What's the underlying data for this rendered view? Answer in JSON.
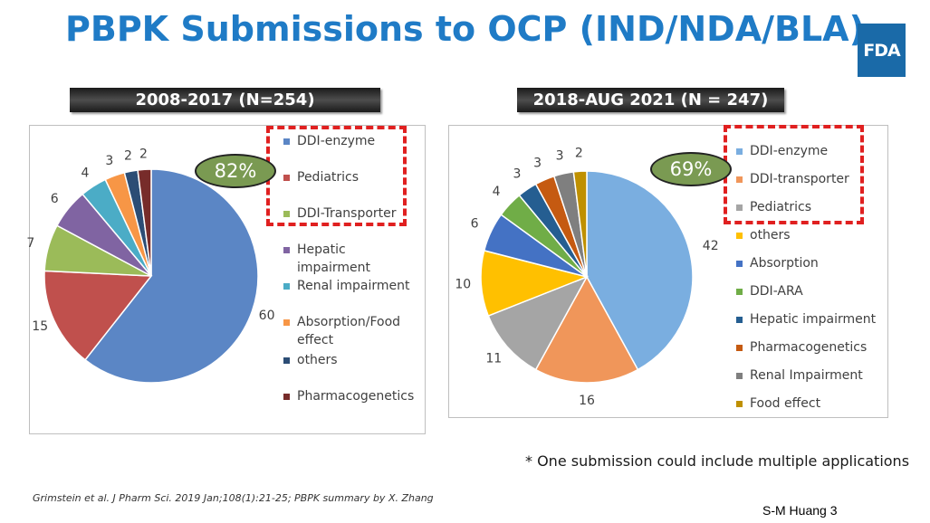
{
  "title": "PBPK Submissions to OCP (IND/NDA/BLA)",
  "logo_text": "FDA",
  "note": "* One submission could include multiple applications",
  "citation": "Grimstein et al. J Pharm Sci. 2019 Jan;108(1):21-25; PBPK summary by X. Zhang",
  "slide_number": "S-M Huang 3",
  "chart_data": [
    {
      "type": "pie",
      "title": "2008-2017 (N=254)",
      "highlight_text": "82%",
      "categories": [
        "DDI-enzyme",
        "Pediatrics",
        "DDI-Transporter",
        "Hepatic impairment",
        "Renal impairment",
        "Absorption/Food effect",
        "others",
        "Pharmacogenetics"
      ],
      "values": [
        60,
        15,
        7,
        6,
        4,
        3,
        2,
        2
      ],
      "value_labels": [
        "60",
        "15",
        "7",
        "6",
        "4",
        "3",
        "2",
        "2"
      ],
      "colors": [
        "#5b86c5",
        "#c0504d",
        "#9bbb59",
        "#8064a2",
        "#4bacc6",
        "#f79646",
        "#2c4d75",
        "#772c2a"
      ],
      "legend_placement": "right"
    },
    {
      "type": "pie",
      "title": "2018-AUG 2021 (N = 247)",
      "highlight_text": "69%",
      "categories": [
        "DDI-enzyme",
        "DDI-transporter",
        "Pediatrics",
        "others",
        "Absorption",
        "DDI-ARA",
        "Hepatic impairment",
        "Pharmacogenetics",
        "Renal Impairment",
        "Food effect"
      ],
      "values": [
        42,
        16,
        11,
        10,
        6,
        4,
        3,
        3,
        3,
        2
      ],
      "value_labels": [
        "42",
        "16",
        "11",
        "10",
        "6",
        "4",
        "3",
        "3",
        "3",
        "2"
      ],
      "colors": [
        "#7aaee0",
        "#f0965a",
        "#a5a5a5",
        "#ffc000",
        "#4472c4",
        "#70ad47",
        "#255e91",
        "#c55a11",
        "#7f7f7f",
        "#bf9000"
      ],
      "legend_placement": "right"
    }
  ]
}
